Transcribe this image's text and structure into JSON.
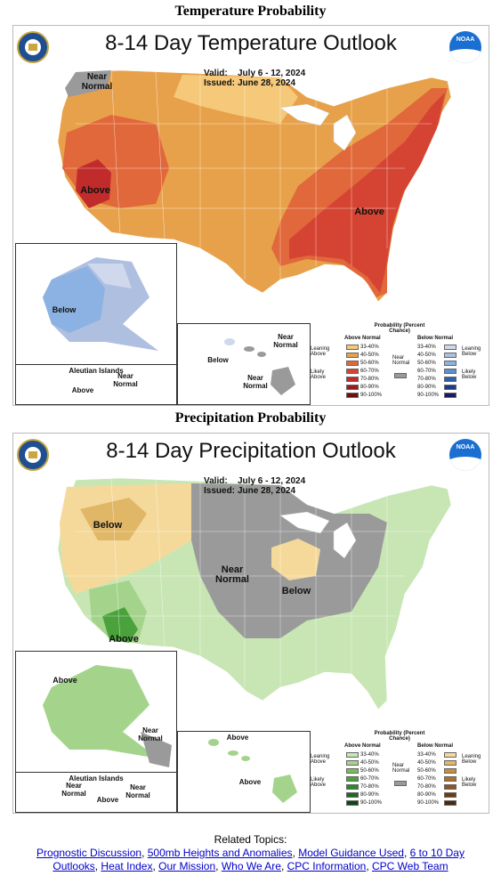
{
  "sections": [
    {
      "heading": "Temperature Probability",
      "title": "8-14 Day Temperature Outlook",
      "valid_label": "Valid:",
      "valid": "July 6 - 12, 2024",
      "issued_label": "Issued:",
      "issued": "June 28, 2024",
      "labels": {
        "near_normal": "Near Normal",
        "above_west": "Above",
        "above_east": "Above",
        "alaska": "Below",
        "aleutian_title": "Aleutian Islands",
        "aleutian_near": "Near Normal",
        "aleutian_above": "Above",
        "hawaii_below": "Below",
        "hawaii_near1": "Near Normal",
        "hawaii_near2": "Near Normal"
      },
      "legend": {
        "title": "Probability (Percent Chance)",
        "left_head": "Above Normal",
        "right_head": "Below Normal",
        "left_group1": "Leaning Above",
        "left_group2": "Likely Above",
        "right_group1": "Leaning Below",
        "right_group2": "Likely Below",
        "near": "Near Normal",
        "ranges": [
          "33-40%",
          "40-50%",
          "50-60%",
          "60-70%",
          "70-80%",
          "80-90%",
          "90-100%"
        ],
        "left_colors": [
          "#f5c87a",
          "#e8a14b",
          "#e0683a",
          "#d54433",
          "#c22b2b",
          "#9b1c1c",
          "#6b1010"
        ],
        "right_colors": [
          "#cfd8ec",
          "#aebfe0",
          "#8bb2e2",
          "#5c8fd0",
          "#2f5fb0",
          "#1f3b87",
          "#1c1c5c"
        ],
        "near_color": "#9a9a9a"
      }
    },
    {
      "heading": "Precipitation Probability",
      "title": "8-14 Day Precipitation Outlook",
      "valid_label": "Valid:",
      "valid": "July 6 - 12, 2024",
      "issued_label": "Issued:",
      "issued": "June 28, 2024",
      "labels": {
        "below_nw": "Below",
        "near_normal": "Near Normal",
        "below_mw": "Below",
        "above_sw": "Above",
        "alaska_above": "Above",
        "alaska_near": "Near Normal",
        "aleutian_title": "Aleutian Islands",
        "aleutian_near1": "Near Normal",
        "aleutian_above": "Above",
        "aleutian_near2": "Near Normal",
        "hawaii_above1": "Above",
        "hawaii_above2": "Above"
      },
      "legend": {
        "title": "Probability (Percent Chance)",
        "left_head": "Above Normal",
        "right_head": "Below Normal",
        "left_group1": "Leaning Above",
        "left_group2": "Likely Above",
        "right_group1": "Leaning Below",
        "right_group2": "Likely Below",
        "near": "Near Normal",
        "ranges": [
          "33-40%",
          "40-50%",
          "50-60%",
          "60-70%",
          "70-80%",
          "80-90%",
          "90-100%"
        ],
        "left_colors": [
          "#c8e6b4",
          "#a4d48c",
          "#78bd5a",
          "#4aa23c",
          "#2c8a2c",
          "#1d6a20",
          "#0f4714"
        ],
        "right_colors": [
          "#f5d99a",
          "#e0b667",
          "#c98d3e",
          "#b0702c",
          "#8f561f",
          "#6d3e15",
          "#4a2a0e"
        ],
        "near_color": "#9a9a9a"
      }
    }
  ],
  "related": {
    "heading": "Related Topics:",
    "links": [
      "Prognostic Discussion",
      "500mb Heights and Anomalies",
      "Model Guidance Used",
      "6 to 10 Day Outlooks",
      "Heat Index",
      "Our Mission",
      "Who We Are",
      "CPC Information",
      "CPC Web Team"
    ]
  }
}
